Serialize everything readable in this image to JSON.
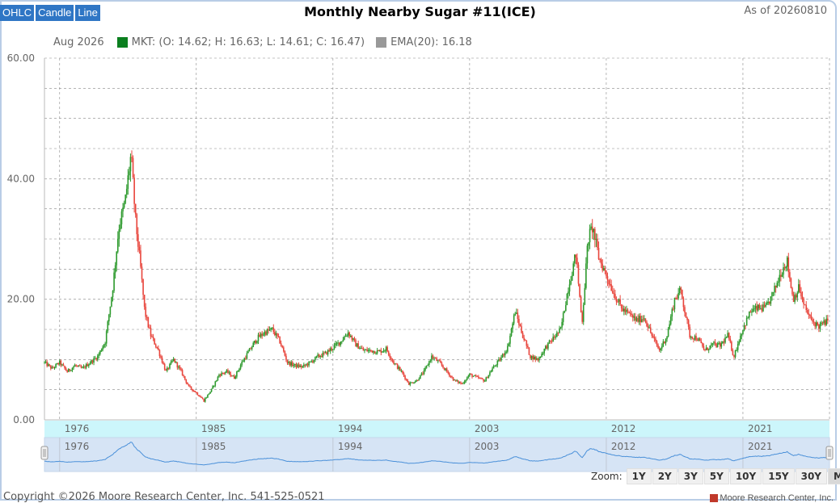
{
  "chart_types": [
    "OHLC",
    "Candle",
    "Line"
  ],
  "title": "Monthly Nearby Sugar #11(ICE)",
  "as_of": "As of 20260810",
  "legend": {
    "date": "Aug 2026",
    "mkt_text": "MKT: (O: 14.62; H: 16.63; L: 14.61; C: 16.47)",
    "ema_text": "EMA(20): 16.18",
    "mkt_color": "#0b7f1f",
    "ema_color": "#999999"
  },
  "colors": {
    "up": "#2e9a2e",
    "down": "#e8453c",
    "navigator_line": "#4a90d9",
    "navigator_fill": "#d6e4f5",
    "range_band": "#ccf6fb"
  },
  "zoom": {
    "label": "Zoom:",
    "buttons": [
      "1Y",
      "2Y",
      "3Y",
      "5Y",
      "10Y",
      "15Y",
      "30Y",
      "MAX"
    ],
    "selected": "MAX"
  },
  "footer": "Copyright ©2026 Moore Research Center, Inc. 541-525-0521",
  "credit": "Moore Research Center, Inc.",
  "chart_data": {
    "type": "candlestick",
    "title": "Monthly Nearby Sugar #11(ICE)",
    "y_axis": {
      "min": 0,
      "max": 60,
      "ticks": [
        "0.00",
        "20.00",
        "40.00",
        "60.00"
      ]
    },
    "x_axis": {
      "min": 1975.0,
      "max": 2026.7,
      "ticks": [
        1976,
        1985,
        1994,
        2003,
        2012,
        2021
      ]
    },
    "grid": true,
    "price_path": [
      [
        1975.0,
        9.5
      ],
      [
        1975.5,
        8.5
      ],
      [
        1976.0,
        9.5
      ],
      [
        1976.5,
        8.0
      ],
      [
        1977.0,
        9.0
      ],
      [
        1977.5,
        8.5
      ],
      [
        1978.0,
        9.5
      ],
      [
        1978.5,
        10.5
      ],
      [
        1979.0,
        13.0
      ],
      [
        1979.5,
        22.0
      ],
      [
        1979.9,
        32.0
      ],
      [
        1980.3,
        36.0
      ],
      [
        1980.7,
        44.0
      ],
      [
        1981.0,
        33.0
      ],
      [
        1981.3,
        26.0
      ],
      [
        1981.6,
        18.0
      ],
      [
        1982.0,
        14.0
      ],
      [
        1982.5,
        11.5
      ],
      [
        1983.0,
        8.0
      ],
      [
        1983.5,
        10.0
      ],
      [
        1984.0,
        8.0
      ],
      [
        1984.5,
        5.5
      ],
      [
        1985.0,
        4.5
      ],
      [
        1985.5,
        3.2
      ],
      [
        1986.0,
        5.0
      ],
      [
        1986.5,
        7.5
      ],
      [
        1987.0,
        8.0
      ],
      [
        1987.5,
        7.0
      ],
      [
        1988.0,
        9.5
      ],
      [
        1988.5,
        11.5
      ],
      [
        1989.0,
        13.5
      ],
      [
        1989.5,
        14.5
      ],
      [
        1990.0,
        15.0
      ],
      [
        1990.5,
        13.0
      ],
      [
        1991.0,
        9.5
      ],
      [
        1991.5,
        9.0
      ],
      [
        1992.0,
        8.8
      ],
      [
        1992.5,
        9.5
      ],
      [
        1993.0,
        10.5
      ],
      [
        1993.5,
        11.0
      ],
      [
        1994.0,
        12.0
      ],
      [
        1994.5,
        13.0
      ],
      [
        1995.0,
        14.5
      ],
      [
        1995.5,
        12.5
      ],
      [
        1996.0,
        11.5
      ],
      [
        1996.5,
        11.5
      ],
      [
        1997.0,
        11.3
      ],
      [
        1997.5,
        11.8
      ],
      [
        1998.0,
        9.5
      ],
      [
        1998.5,
        8.0
      ],
      [
        1999.0,
        6.0
      ],
      [
        1999.5,
        6.5
      ],
      [
        2000.0,
        8.0
      ],
      [
        2000.5,
        10.5
      ],
      [
        2001.0,
        9.5
      ],
      [
        2001.5,
        8.0
      ],
      [
        2002.0,
        6.5
      ],
      [
        2002.5,
        6.0
      ],
      [
        2003.0,
        7.5
      ],
      [
        2003.5,
        7.0
      ],
      [
        2004.0,
        6.5
      ],
      [
        2004.5,
        8.5
      ],
      [
        2005.0,
        10.0
      ],
      [
        2005.5,
        12.0
      ],
      [
        2006.0,
        18.0
      ],
      [
        2006.5,
        14.0
      ],
      [
        2007.0,
        10.5
      ],
      [
        2007.5,
        10.0
      ],
      [
        2008.0,
        12.0
      ],
      [
        2008.5,
        13.5
      ],
      [
        2009.0,
        15.0
      ],
      [
        2009.5,
        22.0
      ],
      [
        2010.0,
        27.5
      ],
      [
        2010.4,
        16.0
      ],
      [
        2010.8,
        30.0
      ],
      [
        2011.1,
        32.0
      ],
      [
        2011.5,
        27.0
      ],
      [
        2012.0,
        24.0
      ],
      [
        2012.5,
        21.0
      ],
      [
        2013.0,
        18.5
      ],
      [
        2013.5,
        17.5
      ],
      [
        2014.0,
        16.5
      ],
      [
        2014.5,
        17.0
      ],
      [
        2015.0,
        14.0
      ],
      [
        2015.5,
        11.5
      ],
      [
        2016.0,
        14.0
      ],
      [
        2016.5,
        20.0
      ],
      [
        2016.9,
        21.5
      ],
      [
        2017.5,
        14.0
      ],
      [
        2018.0,
        13.5
      ],
      [
        2018.5,
        11.5
      ],
      [
        2019.0,
        12.5
      ],
      [
        2019.5,
        12.3
      ],
      [
        2020.0,
        14.0
      ],
      [
        2020.4,
        10.5
      ],
      [
        2020.9,
        14.5
      ],
      [
        2021.5,
        18.0
      ],
      [
        2022.0,
        18.5
      ],
      [
        2022.5,
        18.5
      ],
      [
        2023.0,
        21.0
      ],
      [
        2023.5,
        24.5
      ],
      [
        2023.9,
        26.5
      ],
      [
        2024.3,
        20.0
      ],
      [
        2024.7,
        22.0
      ],
      [
        2025.0,
        19.0
      ],
      [
        2025.5,
        16.5
      ],
      [
        2026.0,
        15.5
      ],
      [
        2026.58,
        16.47
      ]
    ]
  }
}
